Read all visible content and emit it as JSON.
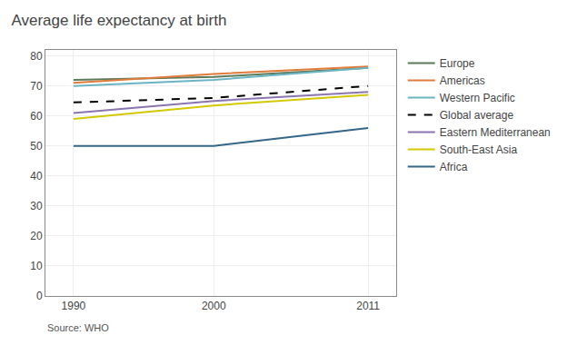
{
  "chart_data": {
    "type": "line",
    "title": "Average life expectancy at birth",
    "annotations": [
      "Source: WHO"
    ],
    "x": [
      1990,
      2000,
      2011
    ],
    "series": [
      {
        "name": "Europe",
        "color": "#5a7a5a",
        "line_style": "solid",
        "values": [
          72.0,
          73.0,
          76.0
        ]
      },
      {
        "name": "Americas",
        "color": "#e07b39",
        "line_style": "solid",
        "values": [
          71.0,
          74.0,
          76.5
        ]
      },
      {
        "name": "Western Pacific",
        "color": "#6ab5c4",
        "line_style": "solid",
        "values": [
          70.0,
          72.0,
          76.0
        ]
      },
      {
        "name": "Global average",
        "color": "#000000",
        "line_style": "dashed",
        "values": [
          64.5,
          66.0,
          70.0
        ]
      },
      {
        "name": "Eastern Mediterranean",
        "color": "#8b75b0",
        "line_style": "solid",
        "values": [
          61.0,
          65.0,
          68.0
        ]
      },
      {
        "name": "South-East Asia",
        "color": "#d4c800",
        "line_style": "solid",
        "values": [
          59.0,
          63.5,
          67.0
        ]
      },
      {
        "name": "Africa",
        "color": "#336688",
        "line_style": "solid",
        "values": [
          50.0,
          50.0,
          56.0
        ]
      }
    ],
    "xlim": [
      1988,
      2013
    ],
    "ylim": [
      0,
      82
    ],
    "xticks": [
      1990,
      2000,
      2011
    ],
    "yticks": [
      0,
      10,
      20,
      30,
      40,
      50,
      60,
      70,
      80
    ],
    "grid": true,
    "legend": "right"
  }
}
